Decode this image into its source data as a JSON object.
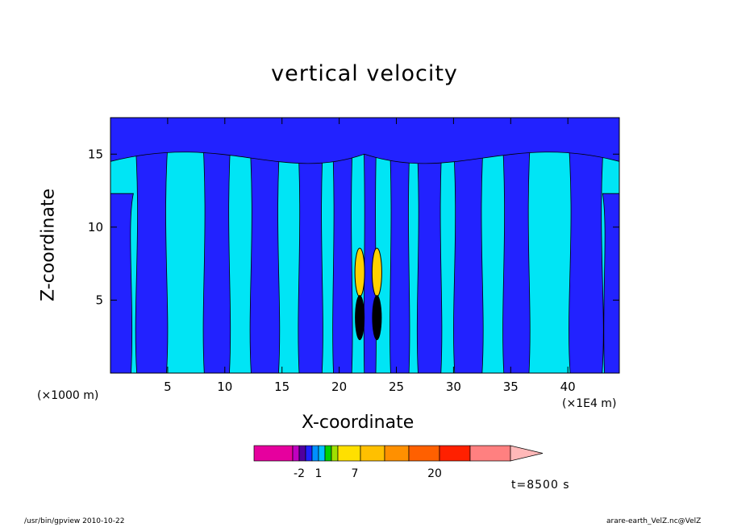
{
  "chart_data": {
    "type": "heatmap",
    "title": "vertical velocity",
    "xlabel": "X-coordinate",
    "ylabel": "Z-coordinate",
    "x_unit_note": "(×1000 m)",
    "x_scale_note": "(×1E4 m)",
    "xlim": [
      0,
      44.5
    ],
    "ylim": [
      0,
      17.5
    ],
    "x_ticks": [
      5,
      10,
      15,
      20,
      25,
      30,
      35,
      40
    ],
    "y_ticks": [
      5,
      10,
      15
    ],
    "colorbar": {
      "colors": [
        "#e6009e",
        "#c000c0",
        "#5000a0",
        "#2020ff",
        "#0090ff",
        "#00c0ff",
        "#00d000",
        "#a0e000",
        "#ffe000",
        "#ffc000",
        "#ff9000",
        "#ff6000",
        "#ff2000",
        "#ff8080",
        "#ffb8b8"
      ],
      "tick_labels": [
        "-2",
        "1",
        "7",
        "20"
      ]
    },
    "annotation": "t=8500 s",
    "background_levels": {
      "negative": "#2222ff",
      "weak_positive": "#00e5f5",
      "strong": "#ffd000"
    }
  },
  "footer": {
    "left": "/usr/bin/gpview   2010-10-22",
    "right": "arare-earth_VelZ.nc@VelZ"
  }
}
